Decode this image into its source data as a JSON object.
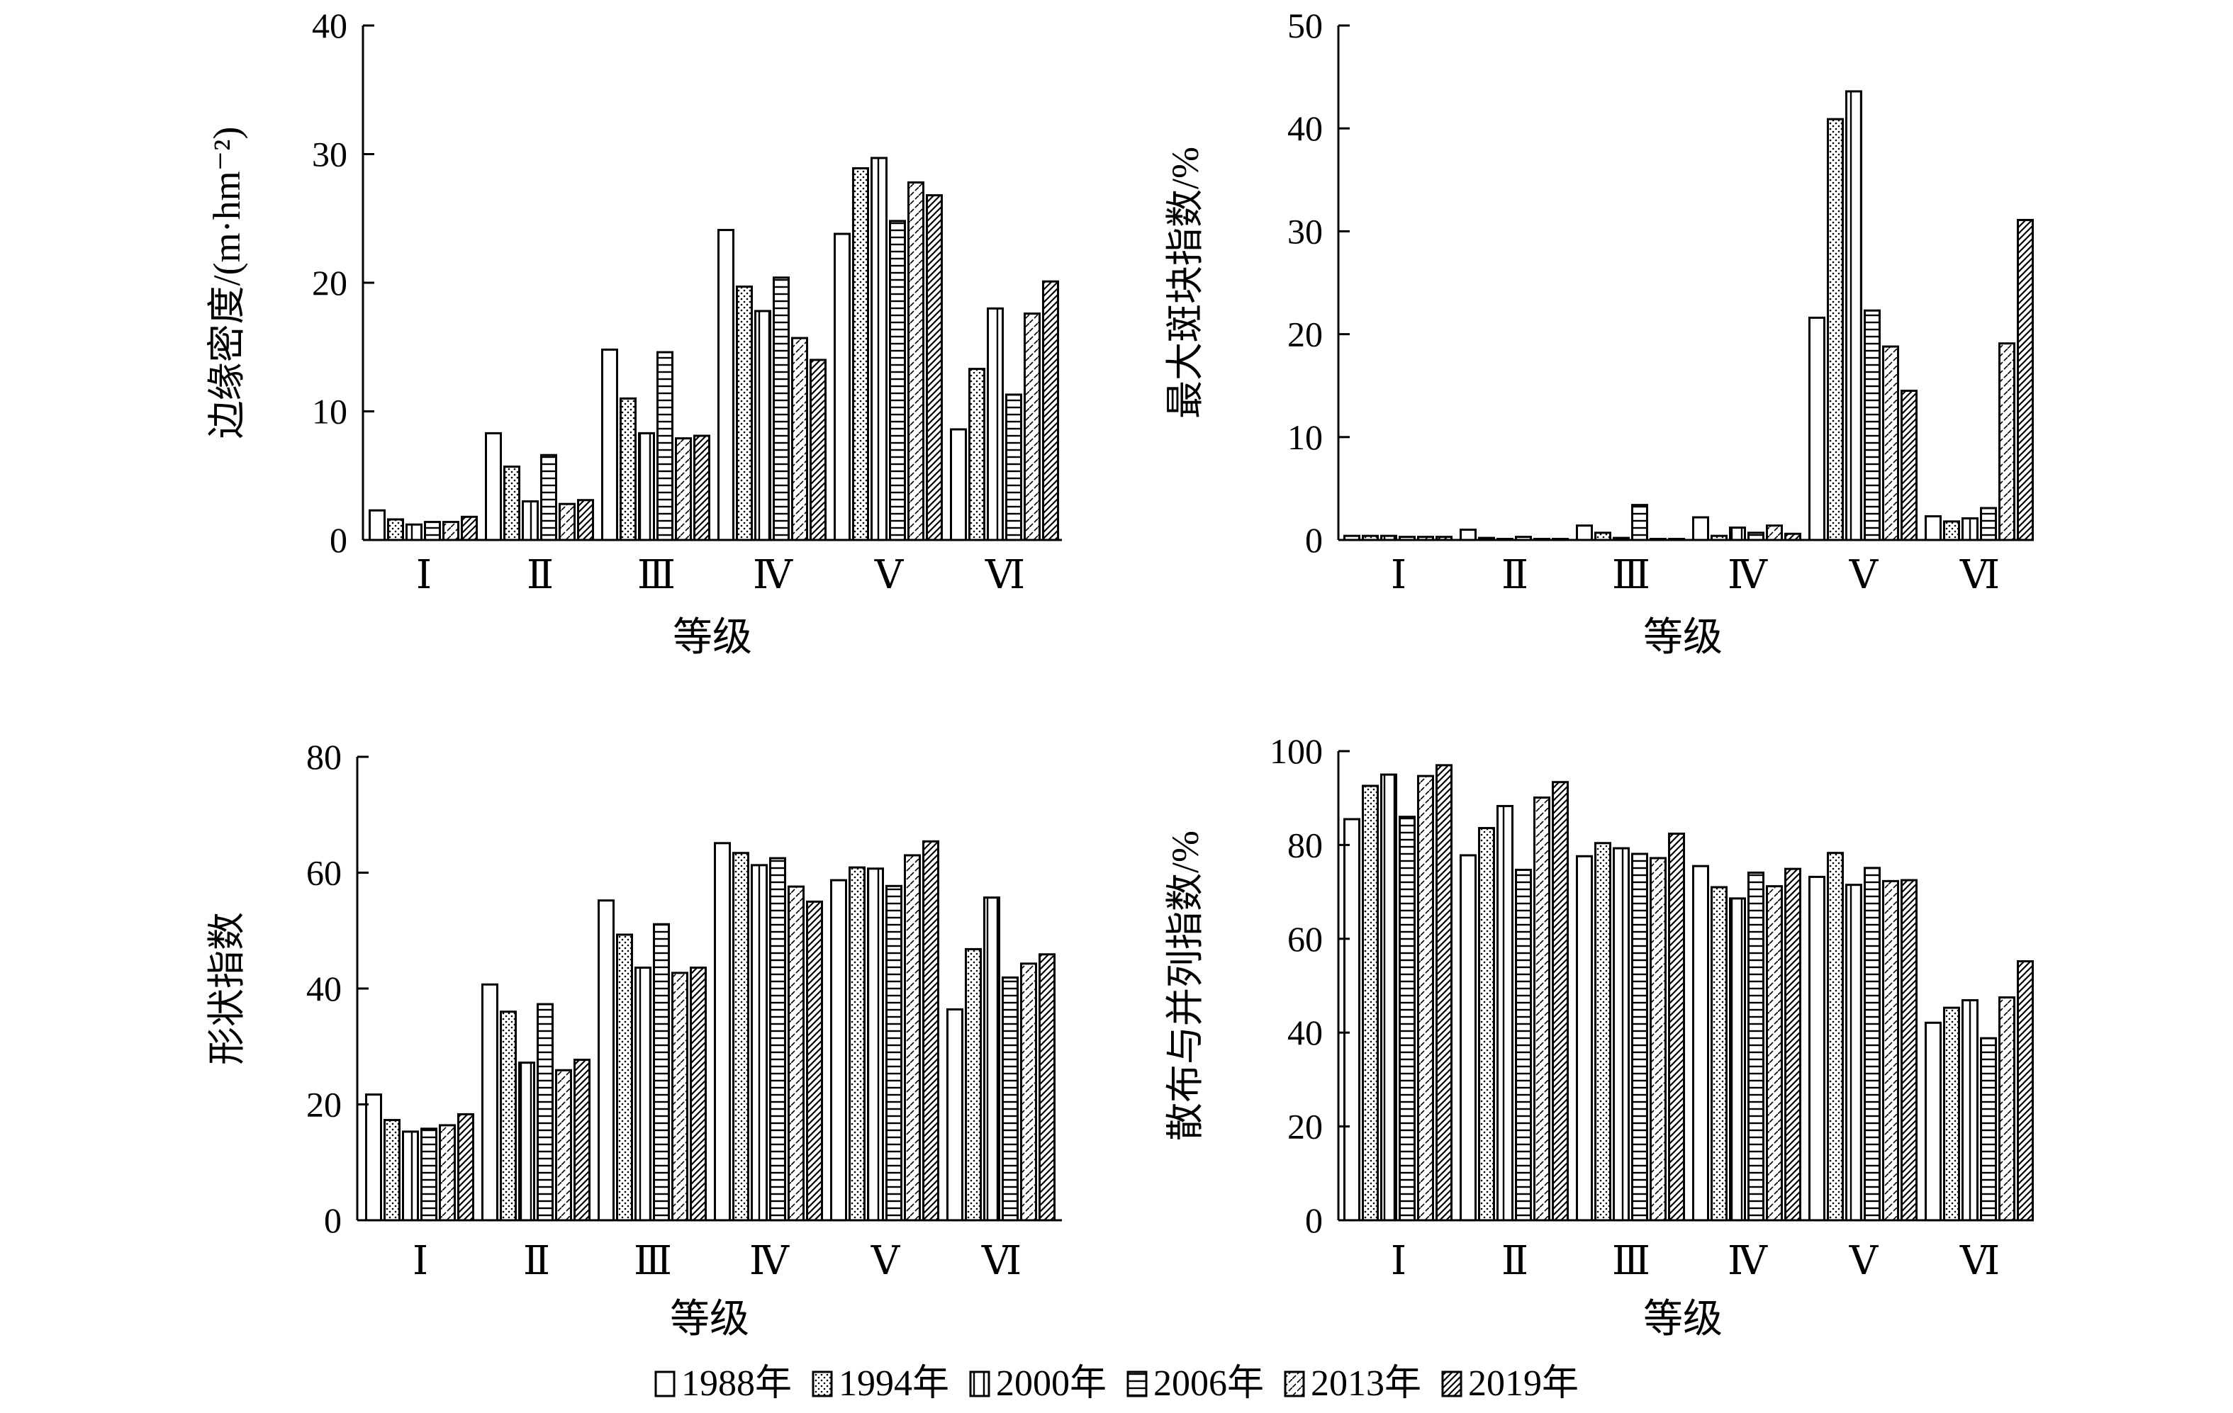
{
  "legend": [
    {
      "label": "1988年",
      "pattern": "open"
    },
    {
      "label": "1994年",
      "pattern": "dots"
    },
    {
      "label": "2000年",
      "pattern": "vlines"
    },
    {
      "label": "2006年",
      "pattern": "hlines"
    },
    {
      "label": "2013年",
      "pattern": "dashes"
    },
    {
      "label": "2019年",
      "pattern": "diag"
    }
  ],
  "colors": {
    "ink": "#000000",
    "background": "#ffffff"
  },
  "chart_data": [
    {
      "type": "bar",
      "title": "",
      "xlabel": "等级",
      "ylabel": "边缘密度/(m·hm⁻²)",
      "categories": [
        "Ⅰ",
        "Ⅱ",
        "Ⅲ",
        "Ⅳ",
        "Ⅴ",
        "Ⅵ"
      ],
      "yticks": [
        "0",
        "10",
        "20",
        "30",
        "40"
      ],
      "ylim": [
        0,
        40
      ],
      "grid": false,
      "series": [
        {
          "name": "1988年",
          "values": [
            2.3,
            8.3,
            14.8,
            24.1,
            23.8,
            8.6
          ]
        },
        {
          "name": "1994年",
          "values": [
            1.6,
            5.7,
            11.0,
            19.7,
            28.9,
            13.3
          ]
        },
        {
          "name": "2000年",
          "values": [
            1.2,
            3.0,
            8.3,
            17.8,
            29.7,
            18.0
          ]
        },
        {
          "name": "2006年",
          "values": [
            1.4,
            6.6,
            14.6,
            20.4,
            24.8,
            11.3
          ]
        },
        {
          "name": "2013年",
          "values": [
            1.4,
            2.8,
            7.9,
            15.7,
            27.8,
            17.6
          ]
        },
        {
          "name": "2019年",
          "values": [
            1.8,
            3.1,
            8.1,
            14.0,
            26.8,
            20.1
          ]
        }
      ]
    },
    {
      "type": "bar",
      "title": "",
      "xlabel": "等级",
      "ylabel": "最大斑块指数/%",
      "categories": [
        "Ⅰ",
        "Ⅱ",
        "Ⅲ",
        "Ⅳ",
        "Ⅴ",
        "Ⅵ"
      ],
      "yticks": [
        "0",
        "10",
        "20",
        "30",
        "40",
        "50"
      ],
      "ylim": [
        0,
        50
      ],
      "grid": false,
      "series": [
        {
          "name": "1988年",
          "values": [
            0.4,
            1.0,
            1.4,
            2.2,
            21.6,
            2.3
          ]
        },
        {
          "name": "1994年",
          "values": [
            0.4,
            0.2,
            0.7,
            0.4,
            40.9,
            1.8
          ]
        },
        {
          "name": "2000年",
          "values": [
            0.4,
            0.1,
            0.2,
            1.2,
            43.6,
            2.1
          ]
        },
        {
          "name": "2006年",
          "values": [
            0.3,
            0.3,
            3.4,
            0.7,
            22.3,
            3.1
          ]
        },
        {
          "name": "2013年",
          "values": [
            0.3,
            0.1,
            0.1,
            1.4,
            18.8,
            19.1
          ]
        },
        {
          "name": "2019年",
          "values": [
            0.3,
            0.1,
            0.1,
            0.6,
            14.5,
            31.1
          ]
        }
      ]
    },
    {
      "type": "bar",
      "title": "",
      "xlabel": "等级",
      "ylabel": "形状指数",
      "categories": [
        "Ⅰ",
        "Ⅱ",
        "Ⅲ",
        "Ⅳ",
        "Ⅴ",
        "Ⅵ"
      ],
      "yticks": [
        "0",
        "20",
        "40",
        "60",
        "80"
      ],
      "ylim": [
        0,
        80
      ],
      "grid": false,
      "series": [
        {
          "name": "1988年",
          "values": [
            21.7,
            40.7,
            55.2,
            65.1,
            58.7,
            36.4
          ]
        },
        {
          "name": "1994年",
          "values": [
            17.3,
            36.0,
            49.3,
            63.4,
            60.9,
            46.8
          ]
        },
        {
          "name": "2000年",
          "values": [
            15.3,
            27.2,
            43.6,
            61.3,
            60.7,
            55.7
          ]
        },
        {
          "name": "2006年",
          "values": [
            15.8,
            37.3,
            51.1,
            62.5,
            57.7,
            41.9
          ]
        },
        {
          "name": "2013年",
          "values": [
            16.4,
            25.9,
            42.7,
            57.6,
            63.0,
            44.3
          ]
        },
        {
          "name": "2019年",
          "values": [
            18.3,
            27.7,
            43.6,
            55.0,
            65.4,
            45.9
          ]
        }
      ]
    },
    {
      "type": "bar",
      "title": "",
      "xlabel": "等级",
      "ylabel": "散布与并列指数/%",
      "categories": [
        "Ⅰ",
        "Ⅱ",
        "Ⅲ",
        "Ⅳ",
        "Ⅴ",
        "Ⅵ"
      ],
      "yticks": [
        "0",
        "20",
        "40",
        "60",
        "80",
        "100"
      ],
      "ylim": [
        0,
        100
      ],
      "grid": false,
      "series": [
        {
          "name": "1988年",
          "values": [
            85.5,
            77.8,
            77.6,
            75.5,
            73.2,
            42.1
          ]
        },
        {
          "name": "1994年",
          "values": [
            92.6,
            83.6,
            80.4,
            71.0,
            78.3,
            45.3
          ]
        },
        {
          "name": "2000年",
          "values": [
            95.0,
            88.3,
            79.3,
            68.6,
            71.5,
            46.9
          ]
        },
        {
          "name": "2006年",
          "values": [
            86.0,
            74.7,
            78.1,
            74.1,
            75.1,
            38.8
          ]
        },
        {
          "name": "2013年",
          "values": [
            94.7,
            90.1,
            77.2,
            71.2,
            72.3,
            47.5
          ]
        },
        {
          "name": "2019年",
          "values": [
            97.0,
            93.4,
            82.4,
            74.9,
            72.5,
            55.2
          ]
        }
      ]
    }
  ]
}
